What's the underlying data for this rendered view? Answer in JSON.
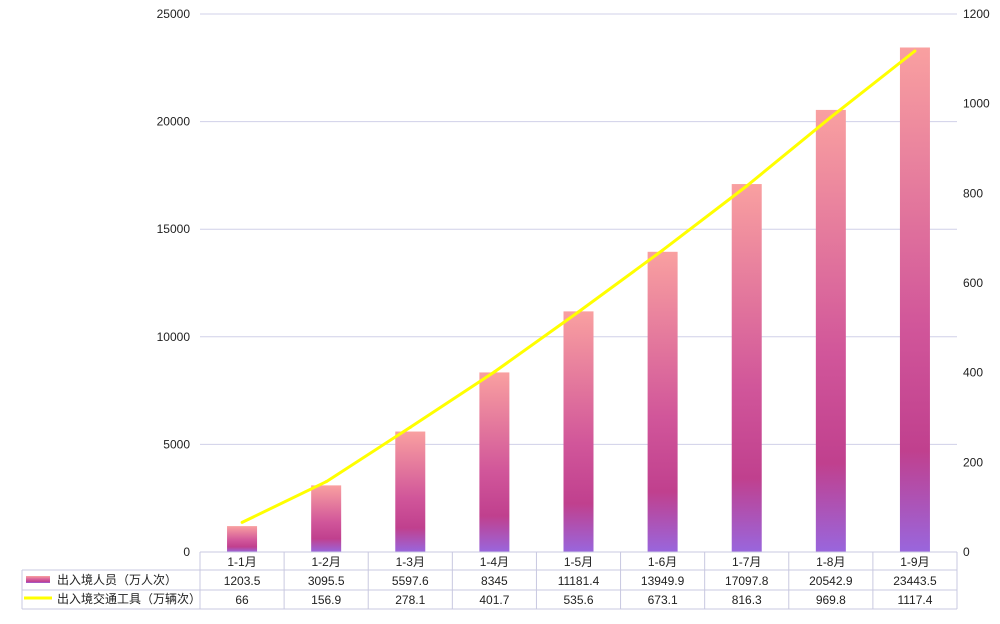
{
  "chart_data": {
    "type": "bar",
    "categories": [
      "1-1月",
      "1-2月",
      "1-3月",
      "1-4月",
      "1-5月",
      "1-6月",
      "1-7月",
      "1-8月",
      "1-9月"
    ],
    "series": [
      {
        "name": "出入境人员（万人次）",
        "kind": "bar",
        "axis": "left",
        "values": [
          1203.5,
          3095.5,
          5597.6,
          8345,
          11181.4,
          13949.9,
          17097.8,
          20542.9,
          23443.5
        ],
        "labels": [
          "1203.5",
          "3095.5",
          "5597.6",
          "8345",
          "11181.4",
          "13949.9",
          "17097.8",
          "20542.9",
          "23443.5"
        ],
        "color": "#c0408e"
      },
      {
        "name": "出入境交通工具（万辆次）",
        "kind": "line",
        "axis": "right",
        "values": [
          66,
          156.9,
          278.1,
          401.7,
          535.6,
          673.1,
          816.3,
          969.8,
          1117.4
        ],
        "labels": [
          "66",
          "156.9",
          "278.1",
          "401.7",
          "535.6",
          "673.1",
          "816.3",
          "969.8",
          "1117.4"
        ],
        "color": "#ffff00"
      }
    ],
    "y_left": {
      "min": 0,
      "max": 25000,
      "ticks": [
        "0",
        "5000",
        "10000",
        "15000",
        "20000",
        "25000"
      ]
    },
    "y_right": {
      "min": 0,
      "max": 1200,
      "ticks": [
        "0",
        "200",
        "400",
        "600",
        "800",
        "1000",
        "1200"
      ]
    },
    "title": "",
    "xlabel": "",
    "ylabel": "",
    "grid": true,
    "legend": "data-table-left",
    "colors": {
      "bar_top": "#f9a0a0",
      "bar_mid": "#c0408e",
      "bar_bottom": "#9966dd",
      "line": "#ffff00",
      "grid": "#d0d0e8"
    }
  }
}
